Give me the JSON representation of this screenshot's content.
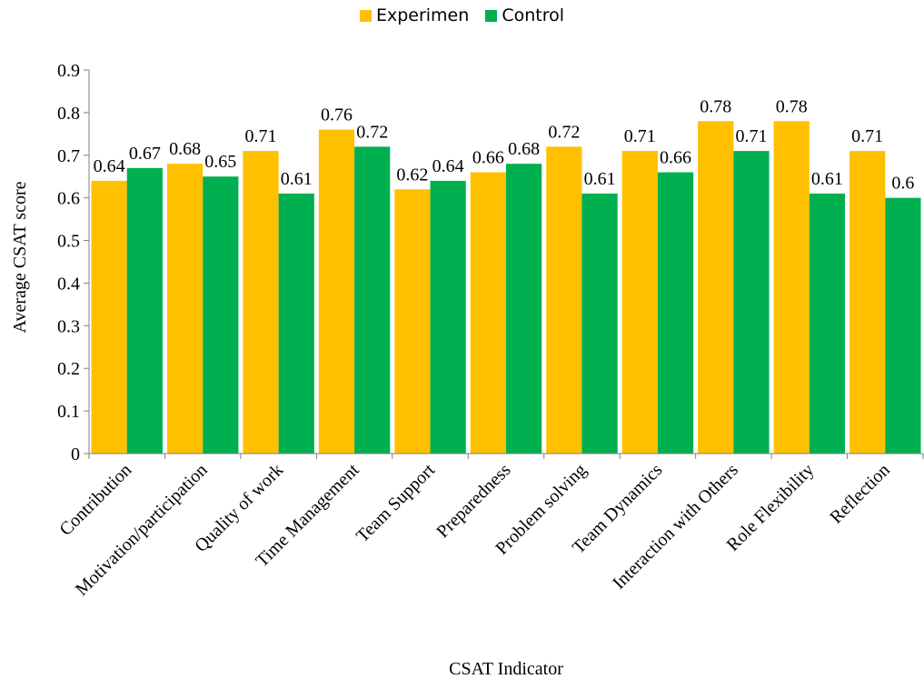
{
  "chart_data": {
    "type": "bar",
    "categories": [
      "Contribution",
      "Motivation/participation",
      "Quality of work",
      "Time Management",
      "Team Support",
      "Preparedness",
      "Problem solving",
      "Team Dynamics",
      "Interaction with Others",
      "Role Flexibility",
      "Reflection"
    ],
    "series": [
      {
        "name": "Experimen",
        "color": "#ffc000",
        "values": [
          0.64,
          0.68,
          0.71,
          0.76,
          0.62,
          0.66,
          0.72,
          0.71,
          0.78,
          0.78,
          0.71
        ]
      },
      {
        "name": "Control",
        "color": "#00b050",
        "values": [
          0.67,
          0.65,
          0.61,
          0.72,
          0.64,
          0.68,
          0.61,
          0.66,
          0.71,
          0.61,
          0.6
        ]
      }
    ],
    "xlabel": "CSAT Indicator",
    "ylabel": "Average CSAT  score",
    "ylim": [
      0,
      0.9
    ],
    "yticks": [
      "0",
      "0.1",
      "0.2",
      "0.3",
      "0.4",
      "0.5",
      "0.6",
      "0.7",
      "0.8",
      "0.9"
    ],
    "legend_position": "top-center",
    "grid": false
  }
}
